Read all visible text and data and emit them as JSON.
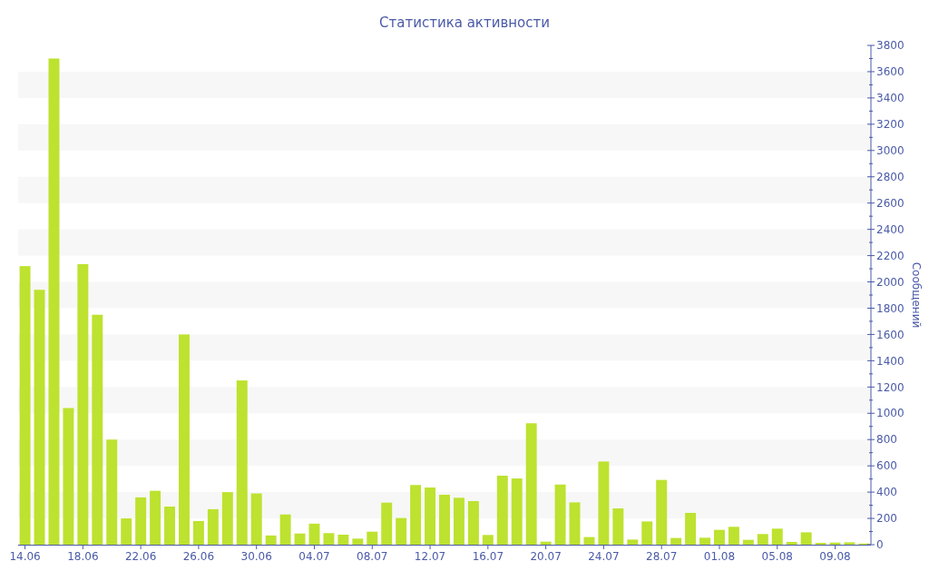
{
  "chart_data": {
    "type": "bar",
    "title": "Статистика активности",
    "ylabel": "Сообщений",
    "categories": [
      "14.06",
      null,
      null,
      null,
      "18.06",
      null,
      null,
      null,
      "22.06",
      null,
      null,
      null,
      "26.06",
      null,
      null,
      null,
      "30.06",
      null,
      null,
      null,
      "04.07",
      null,
      null,
      null,
      "08.07",
      null,
      null,
      null,
      "12.07",
      null,
      null,
      null,
      "16.07",
      null,
      null,
      null,
      "20.07",
      null,
      null,
      null,
      "24.07",
      null,
      null,
      null,
      "28.07",
      null,
      null,
      null,
      "01.08",
      null,
      null,
      null,
      "05.08",
      null,
      null,
      null,
      "09.08",
      null,
      null
    ],
    "values": [
      2120,
      1940,
      3700,
      1040,
      2135,
      1750,
      800,
      200,
      360,
      410,
      290,
      1600,
      180,
      270,
      400,
      1250,
      390,
      70,
      230,
      85,
      160,
      88,
      76,
      46,
      99,
      320,
      203,
      454,
      435,
      380,
      357,
      332,
      74,
      525,
      504,
      924,
      23,
      458,
      322,
      58,
      633,
      276,
      39,
      177,
      493,
      51,
      242,
      53,
      113,
      136,
      37,
      81,
      122,
      21,
      94,
      14,
      16,
      18,
      9
    ],
    "color": "#bde22f",
    "ylim": [
      0,
      3800
    ],
    "yticks": [
      0,
      {
        "value": 100,
        "label": null
      },
      200,
      {
        "value": 300,
        "label": null
      },
      400,
      {
        "value": 500,
        "label": null
      },
      600,
      {
        "value": 700,
        "label": null
      },
      800,
      {
        "value": 900,
        "label": null
      },
      1000,
      {
        "value": 1100,
        "label": null
      },
      1200,
      {
        "value": 1300,
        "label": null
      },
      1400,
      {
        "value": 1500,
        "label": null
      },
      1600,
      {
        "value": 1700,
        "label": null
      },
      1800,
      {
        "value": 1900,
        "label": null
      },
      2000,
      {
        "value": 2100,
        "label": null
      },
      2200,
      {
        "value": 2300,
        "label": null
      },
      2400,
      {
        "value": 2500,
        "label": null
      },
      2600,
      {
        "value": 2700,
        "label": null
      },
      2800,
      {
        "value": 2900,
        "label": null
      },
      3000,
      {
        "value": 3100,
        "label": null
      },
      3200,
      {
        "value": 3300,
        "label": null
      },
      3400,
      {
        "value": 3500,
        "label": null
      },
      3600,
      {
        "value": 3700,
        "label": null
      },
      3800
    ],
    "bands": [
      {
        "axis": "y",
        "from": 200,
        "to": 400,
        "color": "#f7f7f7"
      },
      {
        "axis": "y",
        "from": 600,
        "to": 800,
        "color": "#f7f7f7"
      },
      {
        "axis": "y",
        "from": 1000,
        "to": 1200,
        "color": "#f7f7f7"
      },
      {
        "axis": "y",
        "from": 1400,
        "to": 1600,
        "color": "#f7f7f7"
      },
      {
        "axis": "y",
        "from": 1800,
        "to": 2000,
        "color": "#f7f7f7"
      },
      {
        "axis": "y",
        "from": 2200,
        "to": 2400,
        "color": "#f7f7f7"
      },
      {
        "axis": "y",
        "from": 2600,
        "to": 2800,
        "color": "#f7f7f7"
      },
      {
        "axis": "y",
        "from": 3000,
        "to": 3200,
        "color": "#f7f7f7"
      },
      {
        "axis": "y",
        "from": 3400,
        "to": 3600,
        "color": "#f7f7f7"
      }
    ]
  }
}
